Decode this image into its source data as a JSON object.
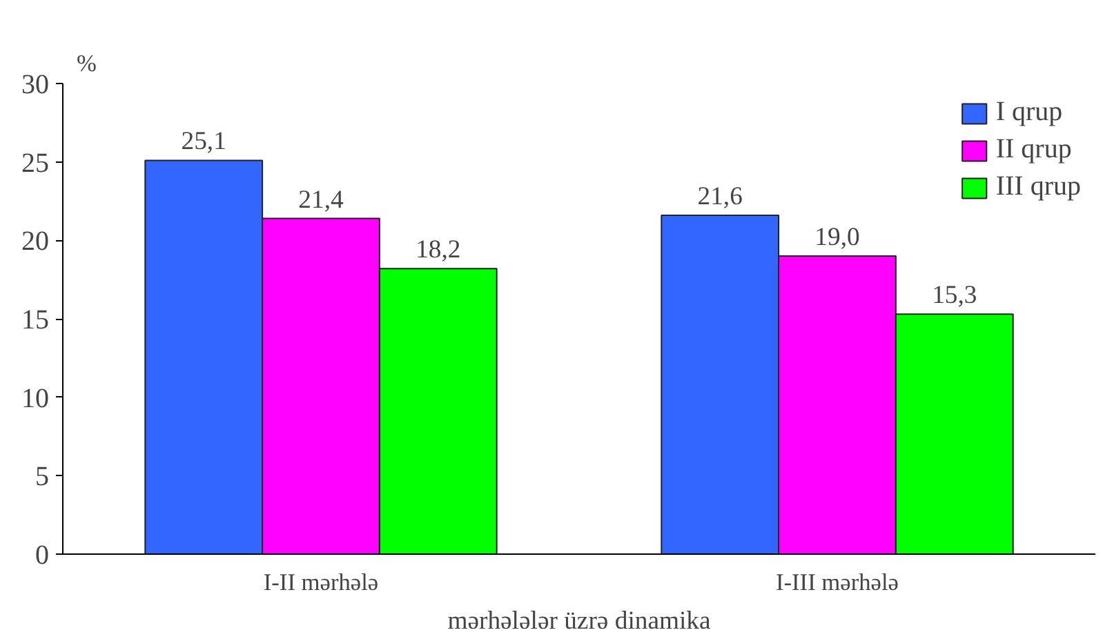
{
  "chart_data": {
    "type": "bar",
    "ylabel": "%",
    "xlabel": "mərhələlər üzrə dinamika",
    "categories": [
      "I-II mərhələ",
      "I-III mərhələ"
    ],
    "series": [
      {
        "name": "I qrup",
        "color": "#3366ff",
        "values": [
          25.1,
          21.6
        ],
        "value_labels": [
          "25,1",
          "21,6"
        ]
      },
      {
        "name": "II qrup",
        "color": "#ff00ff",
        "values": [
          21.4,
          19.0
        ],
        "value_labels": [
          "21,4",
          "19,0"
        ]
      },
      {
        "name": "III qrup",
        "color": "#00ff00",
        "values": [
          18.2,
          15.3
        ],
        "value_labels": [
          "18,2",
          "15,3"
        ]
      }
    ],
    "ylim": [
      0,
      30
    ],
    "yticks": [
      0,
      5,
      10,
      15,
      20,
      25,
      30
    ],
    "grid": false,
    "legend": "top right"
  }
}
